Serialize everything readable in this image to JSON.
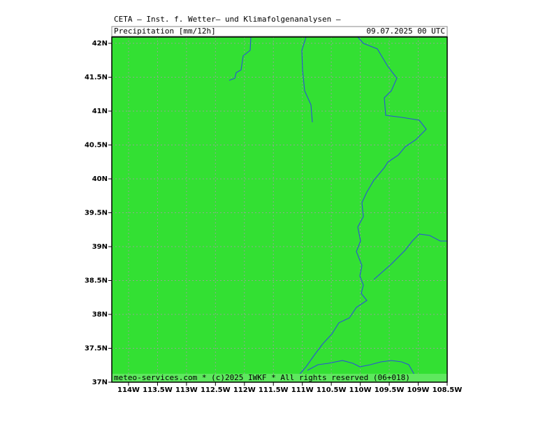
{
  "header": {
    "title": "CETA — Inst. f. Wetter— und Klimafolgenanalysen —",
    "subtitle": "Precipitation [mm/12h]",
    "date": "09.07.2025 00 UTC"
  },
  "map": {
    "lat_labels": [
      "42N",
      "41.5N",
      "41N",
      "40.5N",
      "40N",
      "39.5N",
      "39N",
      "38.5N",
      "38N",
      "37.5N",
      "37N"
    ],
    "lon_labels": [
      "114W",
      "113.5W",
      "113W",
      "112.5W",
      "112W",
      "111.5W",
      "111W",
      "110.5W",
      "110W",
      "109.5W",
      "109W",
      "108.5W"
    ]
  },
  "footer": "meteo-services.com * (c)2025 IWKF * All rights reserved (06+018)"
}
